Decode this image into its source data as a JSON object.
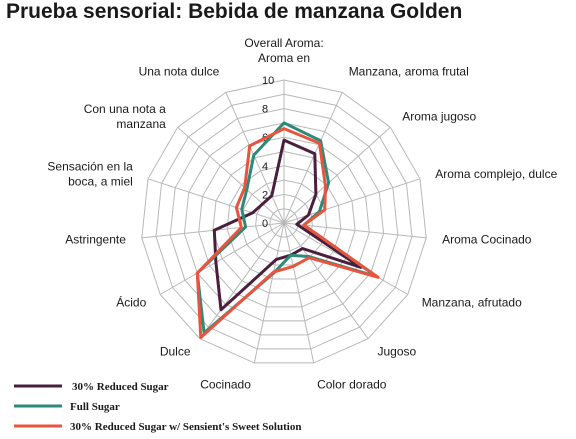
{
  "chart_data": {
    "type": "radar",
    "title": "Prueba sensorial: Bebida de manzana Golden",
    "rmax": 10,
    "ticks": [
      0,
      2,
      4,
      6,
      8,
      10
    ],
    "tick_labels": [
      "0",
      "2",
      "4",
      "6",
      "8",
      "10"
    ],
    "categories": [
      "Overall Aroma:\nAroma en",
      "Manzana, aroma frutal",
      "Aroma jugoso",
      "Aroma complejo, dulce",
      "Aroma Cocinado",
      "Manzana, afrutado",
      "Jugoso",
      "Color dorado",
      "Cocinado",
      "Dulce",
      "Ácido",
      "Astringente",
      "Sensación en la\nboca, a miel",
      "Con una nota a\nmanzana",
      "Una nota dulce"
    ],
    "series": [
      {
        "name": "30% Reduced Sugar",
        "color": "#4a1f3e",
        "values": [
          5.8,
          5.3,
          3.0,
          1.8,
          0.9,
          6.2,
          2.2,
          2.3,
          2.6,
          7.5,
          5.5,
          4.9,
          2.3,
          2.0,
          2.1
        ]
      },
      {
        "name": "Full Sugar",
        "color": "#2e8a78",
        "values": [
          7.0,
          6.3,
          4.2,
          2.6,
          1.4,
          7.5,
          2.9,
          2.3,
          3.6,
          9.5,
          7.0,
          2.7,
          3.1,
          3.5,
          5.2
        ]
      },
      {
        "name": "30% Reduced Sugar w/ Sensient's Sweet Solution",
        "color": "#e8543e",
        "values": [
          6.6,
          6.1,
          3.9,
          3.0,
          1.4,
          7.6,
          3.0,
          3.1,
          3.5,
          9.9,
          7.0,
          3.0,
          3.5,
          3.7,
          5.9
        ]
      }
    ]
  }
}
